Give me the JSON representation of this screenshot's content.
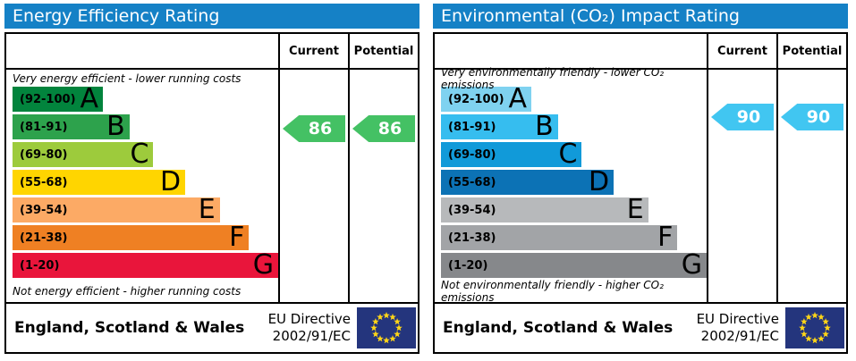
{
  "colors": {
    "header_bg": "#1581c6",
    "flag_bg": "#24357d",
    "flag_star": "#ffd617",
    "border": "#000000"
  },
  "panels": [
    {
      "title": "Energy Efficiency Rating",
      "columns": {
        "current": "Current",
        "potential": "Potential"
      },
      "top_note": "Very energy efficient - lower running costs",
      "bottom_note": "Not energy efficient - higher running costs",
      "bands": [
        {
          "letter": "A",
          "range": "(92-100)",
          "min": 92,
          "max": 100,
          "color": "#02843d",
          "width_pct": 34
        },
        {
          "letter": "B",
          "range": "(81-91)",
          "min": 81,
          "max": 91,
          "color": "#2da24c",
          "width_pct": 44
        },
        {
          "letter": "C",
          "range": "(69-80)",
          "min": 69,
          "max": 80,
          "color": "#9dcb3c",
          "width_pct": 53
        },
        {
          "letter": "D",
          "range": "(55-68)",
          "min": 55,
          "max": 68,
          "color": "#ffd500",
          "width_pct": 65
        },
        {
          "letter": "E",
          "range": "(39-54)",
          "min": 39,
          "max": 54,
          "color": "#fcaa65",
          "width_pct": 78
        },
        {
          "letter": "F",
          "range": "(21-38)",
          "min": 21,
          "max": 38,
          "color": "#ef8023",
          "width_pct": 89
        },
        {
          "letter": "G",
          "range": "(1-20)",
          "min": 1,
          "max": 20,
          "color": "#e9153b",
          "width_pct": 100
        }
      ],
      "current": {
        "value": "86",
        "color": "#44c164"
      },
      "potential": {
        "value": "86",
        "color": "#44c164"
      },
      "footer": {
        "region": "England, Scotland & Wales",
        "directive_line1": "EU Directive",
        "directive_line2": "2002/91/EC"
      }
    },
    {
      "title": "Environmental (CO₂) Impact Rating",
      "columns": {
        "current": "Current",
        "potential": "Potential"
      },
      "top_note": "Very environmentally friendly - lower CO₂ emissions",
      "bottom_note": "Not environmentally friendly - higher CO₂ emissions",
      "bands": [
        {
          "letter": "A",
          "range": "(92-100)",
          "min": 92,
          "max": 100,
          "color": "#7fd2f0",
          "width_pct": 34
        },
        {
          "letter": "B",
          "range": "(81-91)",
          "min": 81,
          "max": 91,
          "color": "#36bdef",
          "width_pct": 44
        },
        {
          "letter": "C",
          "range": "(69-80)",
          "min": 69,
          "max": 80,
          "color": "#119ad9",
          "width_pct": 53
        },
        {
          "letter": "D",
          "range": "(55-68)",
          "min": 55,
          "max": 68,
          "color": "#0c72b5",
          "width_pct": 65
        },
        {
          "letter": "E",
          "range": "(39-54)",
          "min": 39,
          "max": 54,
          "color": "#b7b9bb",
          "width_pct": 78
        },
        {
          "letter": "F",
          "range": "(21-38)",
          "min": 21,
          "max": 38,
          "color": "#a2a4a7",
          "width_pct": 89
        },
        {
          "letter": "G",
          "range": "(1-20)",
          "min": 1,
          "max": 20,
          "color": "#86888b",
          "width_pct": 100
        }
      ],
      "current": {
        "value": "90",
        "color": "#41c6f1"
      },
      "potential": {
        "value": "90",
        "color": "#41c6f1"
      },
      "footer": {
        "region": "England, Scotland & Wales",
        "directive_line1": "EU Directive",
        "directive_line2": "2002/91/EC"
      }
    }
  ],
  "chart_data": [
    {
      "type": "bar",
      "title": "Energy Efficiency Rating",
      "categories": [
        "A (92-100)",
        "B (81-91)",
        "C (69-80)",
        "D (55-68)",
        "E (39-54)",
        "F (21-38)",
        "G (1-20)"
      ],
      "values": [
        34,
        44,
        53,
        65,
        78,
        89,
        100
      ],
      "values_note": "relative bar widths in % of chart area",
      "current_rating": 86,
      "potential_rating": 86,
      "current_band": "B",
      "potential_band": "B",
      "annotations": [
        "Very energy efficient - lower running costs",
        "Not energy efficient - higher running costs"
      ],
      "footer": "England, Scotland & Wales — EU Directive 2002/91/EC"
    },
    {
      "type": "bar",
      "title": "Environmental (CO₂) Impact Rating",
      "categories": [
        "A (92-100)",
        "B (81-91)",
        "C (69-80)",
        "D (55-68)",
        "E (39-54)",
        "F (21-38)",
        "G (1-20)"
      ],
      "values": [
        34,
        44,
        53,
        65,
        78,
        89,
        100
      ],
      "values_note": "relative bar widths in % of chart area",
      "current_rating": 90,
      "potential_rating": 90,
      "current_band": "B",
      "potential_band": "B",
      "annotations": [
        "Very environmentally friendly - lower CO₂ emissions",
        "Not environmentally friendly - higher CO₂ emissions"
      ],
      "footer": "England, Scotland & Wales — EU Directive 2002/91/EC"
    }
  ]
}
